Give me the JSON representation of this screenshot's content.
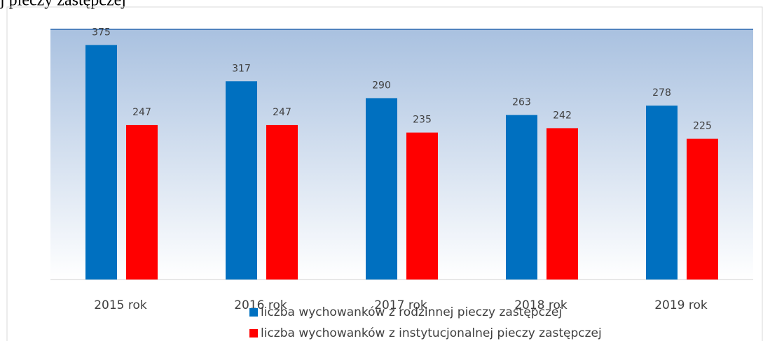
{
  "caption": "j pieczy zastępczej",
  "chart_data": {
    "type": "bar",
    "categories": [
      "2015 rok",
      "2016 rok",
      "2017 rok",
      "2018 rok",
      "2019 rok"
    ],
    "series": [
      {
        "name": "liczba wychowanków z rodzinnej pieczy zastępczej",
        "color": "#0070c0",
        "values": [
          375,
          317,
          290,
          263,
          278
        ]
      },
      {
        "name": "liczba wychowanków z instytucjonalnej pieczy zastępczej",
        "color": "#ff0000",
        "values": [
          247,
          247,
          235,
          242,
          225
        ]
      }
    ],
    "ylim": [
      0,
      400
    ]
  }
}
